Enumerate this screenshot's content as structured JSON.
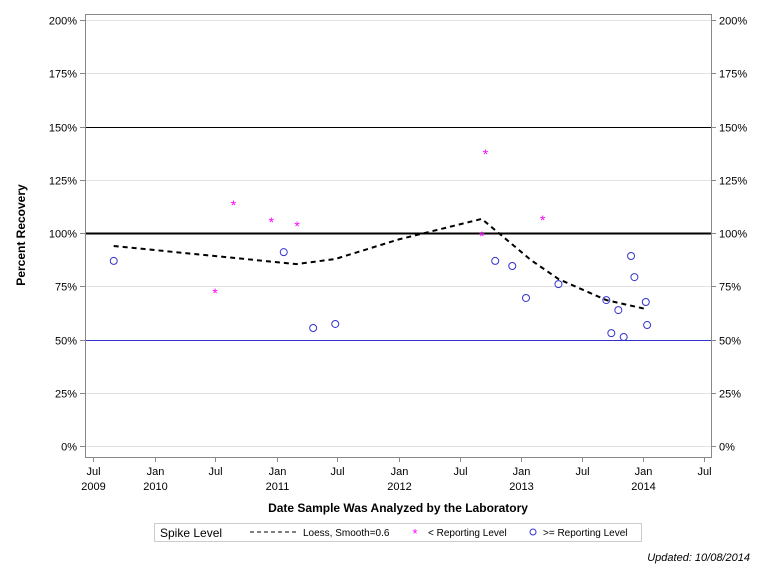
{
  "chart_data": {
    "type": "scatter",
    "title": "",
    "xlabel": "Date Sample Was Analyzed by the Laboratory",
    "ylabel": "Percent Recovery",
    "ylim": [
      0,
      200
    ],
    "xlim": [
      "2009-07-01",
      "2014-07-01"
    ],
    "y_ticks": [
      "0%",
      "25%",
      "50%",
      "75%",
      "100%",
      "125%",
      "150%",
      "175%",
      "200%"
    ],
    "y_tick_values": [
      0,
      25,
      50,
      75,
      100,
      125,
      150,
      175,
      200
    ],
    "x_ticks": [
      {
        "date": "2009-07-01",
        "label": "Jul",
        "year": "2009"
      },
      {
        "date": "2010-01-01",
        "label": "Jan",
        "year": "2010"
      },
      {
        "date": "2010-07-01",
        "label": "Jul",
        "year": ""
      },
      {
        "date": "2011-01-01",
        "label": "Jan",
        "year": "2011"
      },
      {
        "date": "2011-07-01",
        "label": "Jul",
        "year": ""
      },
      {
        "date": "2012-01-01",
        "label": "Jan",
        "year": "2012"
      },
      {
        "date": "2012-07-01",
        "label": "Jul",
        "year": ""
      },
      {
        "date": "2013-01-01",
        "label": "Jan",
        "year": "2013"
      },
      {
        "date": "2013-07-01",
        "label": "Jul",
        "year": ""
      },
      {
        "date": "2014-01-01",
        "label": "Jan",
        "year": "2014"
      },
      {
        "date": "2014-07-01",
        "label": "Jul",
        "year": ""
      }
    ],
    "grid": true,
    "reference_lines": [
      {
        "y": 150,
        "color": "#000000",
        "style": "thin"
      },
      {
        "y": 100,
        "color": "#000000",
        "style": "thick"
      },
      {
        "y": 50,
        "color": "#3333cc",
        "style": "thin"
      }
    ],
    "series": [
      {
        "name": "Loess, Smooth=0.6",
        "kind": "line",
        "color": "#000000",
        "points": [
          {
            "x": "2009-09-01",
            "y": 93.9
          },
          {
            "x": "2011-03-01",
            "y": 85.4
          },
          {
            "x": "2011-06-25",
            "y": 87.8
          },
          {
            "x": "2012-01-01",
            "y": 97.0
          },
          {
            "x": "2012-09-05",
            "y": 106.6
          },
          {
            "x": "2013-01-30",
            "y": 87.3
          },
          {
            "x": "2013-04-22",
            "y": 78.4
          },
          {
            "x": "2013-09-12",
            "y": 68.5
          },
          {
            "x": "2014-01-08",
            "y": 64.3
          }
        ]
      },
      {
        "name": "< Reporting Level",
        "kind": "star",
        "color": "#ff00ff",
        "points": [
          {
            "x": "2010-07-01",
            "y": 72.3
          },
          {
            "x": "2010-08-25",
            "y": 113.6
          },
          {
            "x": "2010-12-16",
            "y": 105.6
          },
          {
            "x": "2011-03-03",
            "y": 103.8
          },
          {
            "x": "2012-09-16",
            "y": 137.6
          },
          {
            "x": "2012-09-05",
            "y": 99.0
          },
          {
            "x": "2013-03-06",
            "y": 106.6
          }
        ]
      },
      {
        "name": ">= Reporting Level",
        "kind": "circle",
        "color": "#3333cc",
        "points": [
          {
            "x": "2009-09-01",
            "y": 86.9
          },
          {
            "x": "2011-01-22",
            "y": 91.0
          },
          {
            "x": "2011-04-20",
            "y": 55.4
          },
          {
            "x": "2011-06-25",
            "y": 57.3
          },
          {
            "x": "2012-10-15",
            "y": 86.9
          },
          {
            "x": "2012-12-05",
            "y": 84.5
          },
          {
            "x": "2013-01-15",
            "y": 69.5
          },
          {
            "x": "2013-04-22",
            "y": 76.0
          },
          {
            "x": "2013-09-12",
            "y": 68.5
          },
          {
            "x": "2013-10-18",
            "y": 63.8
          },
          {
            "x": "2013-09-27",
            "y": 53.0
          },
          {
            "x": "2013-11-03",
            "y": 51.2
          },
          {
            "x": "2013-11-25",
            "y": 89.2
          },
          {
            "x": "2013-12-05",
            "y": 79.3
          },
          {
            "x": "2014-01-08",
            "y": 67.6
          },
          {
            "x": "2014-01-12",
            "y": 56.8
          }
        ]
      }
    ],
    "legend": {
      "placement": "bottom",
      "title": "Spike Level"
    }
  },
  "footnote": "Updated: 10/08/2014"
}
